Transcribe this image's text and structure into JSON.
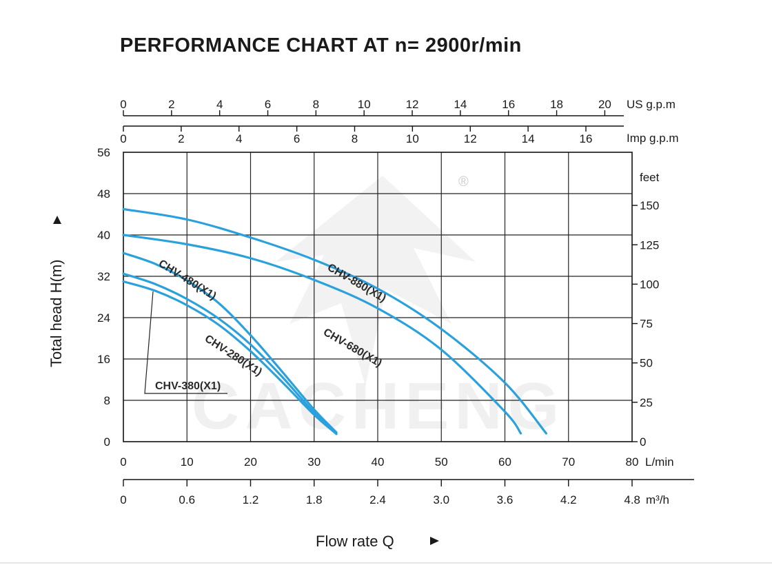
{
  "title": "PERFORMANCE CHART AT n= 2900r/min",
  "watermark": {
    "text": "CACHENG",
    "registered": "®"
  },
  "chart_data": {
    "type": "line",
    "title": "PERFORMANCE CHART AT n= 2900r/min",
    "xlabel": "Flow rate  Q",
    "ylabel": "Total  head H(m)",
    "xlim": [
      0,
      80
    ],
    "ylim": [
      0,
      56
    ],
    "grid": true,
    "x_unit": "L/min",
    "x_ticks": [
      "0",
      "10",
      "20",
      "30",
      "40",
      "50",
      "60",
      "70",
      "80"
    ],
    "y_ticks": [
      "0",
      "8",
      "16",
      "24",
      "32",
      "40",
      "48",
      "56"
    ],
    "y_unit_right": "feet",
    "right_ticks": [
      {
        "label": "0",
        "feet": 0
      },
      {
        "label": "25",
        "feet": 25
      },
      {
        "label": "50",
        "feet": 50
      },
      {
        "label": "75",
        "feet": 75
      },
      {
        "label": "100",
        "feet": 100
      },
      {
        "label": "125",
        "feet": 125
      },
      {
        "label": "150",
        "feet": 150
      }
    ],
    "top_axis_usgpm": {
      "unit": "US g.p.m",
      "ticks": [
        {
          "label": "0",
          "v": 0
        },
        {
          "label": "2",
          "v": 2
        },
        {
          "label": "4",
          "v": 4
        },
        {
          "label": "6",
          "v": 6
        },
        {
          "label": "8",
          "v": 8
        },
        {
          "label": "10",
          "v": 10
        },
        {
          "label": "12",
          "v": 12
        },
        {
          "label": "14",
          "v": 14
        },
        {
          "label": "16",
          "v": 16
        },
        {
          "label": "18",
          "v": 18
        },
        {
          "label": "20",
          "v": 20
        }
      ]
    },
    "top_axis_impgpm": {
      "unit": "Imp g.p.m",
      "ticks": [
        {
          "label": "0",
          "v": 0
        },
        {
          "label": "2",
          "v": 2
        },
        {
          "label": "4",
          "v": 4
        },
        {
          "label": "6",
          "v": 6
        },
        {
          "label": "8",
          "v": 8
        },
        {
          "label": "10",
          "v": 10
        },
        {
          "label": "12",
          "v": 12
        },
        {
          "label": "14",
          "v": 14
        },
        {
          "label": "16",
          "v": 16
        }
      ]
    },
    "bottom_axis_m3h": {
      "unit": "m³/h",
      "ticks": [
        {
          "label": "0",
          "v": 0
        },
        {
          "label": "0.6",
          "v": 0.6
        },
        {
          "label": "1.2",
          "v": 1.2
        },
        {
          "label": "1.8",
          "v": 1.8
        },
        {
          "label": "2.4",
          "v": 2.4
        },
        {
          "label": "3.0",
          "v": 3.0
        },
        {
          "label": "3.6",
          "v": 3.6
        },
        {
          "label": "4.2",
          "v": 4.2
        },
        {
          "label": "4.8",
          "v": 4.8
        }
      ]
    },
    "series": [
      {
        "name": "CHV-280(X1)",
        "x": [
          0,
          5,
          10,
          15,
          20,
          25,
          30,
          33.5
        ],
        "y": [
          31,
          29.2,
          26.4,
          22.6,
          17.5,
          11.5,
          5.2,
          1.5
        ]
      },
      {
        "name": "CHV-380(X1)",
        "x": [
          0,
          5,
          10,
          15,
          20,
          25,
          30,
          33.5
        ],
        "y": [
          32.5,
          30.5,
          27.6,
          23.8,
          18.8,
          12.5,
          5.6,
          1.5
        ]
      },
      {
        "name": "CHV-480(X1)",
        "x": [
          0,
          5,
          10,
          15,
          20,
          25,
          30,
          33.5
        ],
        "y": [
          36.5,
          34.4,
          31.2,
          26.8,
          20.6,
          13.5,
          6.2,
          1.8
        ]
      },
      {
        "name": "CHV-680(X1)",
        "x": [
          0,
          10,
          20,
          30,
          40,
          50,
          60,
          62.5
        ],
        "y": [
          40,
          38.2,
          35.5,
          31.3,
          25.8,
          17.8,
          5.8,
          1.6
        ]
      },
      {
        "name": "CHV-880(X1)",
        "x": [
          0,
          10,
          20,
          30,
          40,
          50,
          60,
          66.5
        ],
        "y": [
          45,
          43,
          39.5,
          35.2,
          29.6,
          21.8,
          11.4,
          1.6
        ]
      }
    ],
    "annotations": [
      {
        "text": "CHV-480(X1)",
        "series": "CHV-480(X1)"
      },
      {
        "text": "CHV-280(X1)",
        "series": "CHV-280(X1)"
      },
      {
        "text": "CHV-380(X1)",
        "series": "CHV-380(X1)"
      },
      {
        "text": "CHV-880(X1)",
        "series": "CHV-880(X1)"
      },
      {
        "text": "CHV-680(X1)",
        "series": "CHV-680(X1)"
      }
    ],
    "colors": {
      "curve": "#2aa1dc",
      "grid": "#222222"
    }
  }
}
